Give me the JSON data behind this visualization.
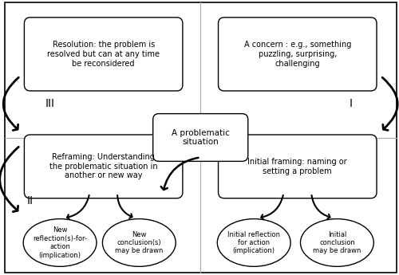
{
  "figure_bg": "#ffffff",
  "outer_border_color": "#000000",
  "quadrant_line_color": "#aaaaaa",
  "box_bg": "#ffffff",
  "box_edge": "#000000",
  "ellipse_bg": "#ffffff",
  "ellipse_edge": "#000000",
  "arrow_color": "#000000",
  "top_left_box": "Resolution: the problem is\nresolved but can at any time\nbe reconsidered",
  "top_right_box": "A concern : e.g., something\npuzzling, surprising,\nchallenging",
  "center_box": "A problematic\nsituation",
  "bottom_left_box": "Reframing: Understanding\nthe problematic situation in\nanother or new way",
  "bottom_right_box": "Initial framing: naming or\nsetting a problem",
  "label_III": "III",
  "label_I": "I",
  "label_II": "II",
  "ellipse_bl1": "New\nreflection(s)-for-\naction\n(implication)",
  "ellipse_bl2": "New\nconclusion(s)\nmay be drawn",
  "ellipse_br1": "Initial reflection\nfor action\n(implication)",
  "ellipse_br2": "Initial\nconclusion\nmay be drawn",
  "font_size_box": 7.0,
  "font_size_ellipse": 6.0,
  "font_size_label": 10,
  "font_size_center": 7.5
}
